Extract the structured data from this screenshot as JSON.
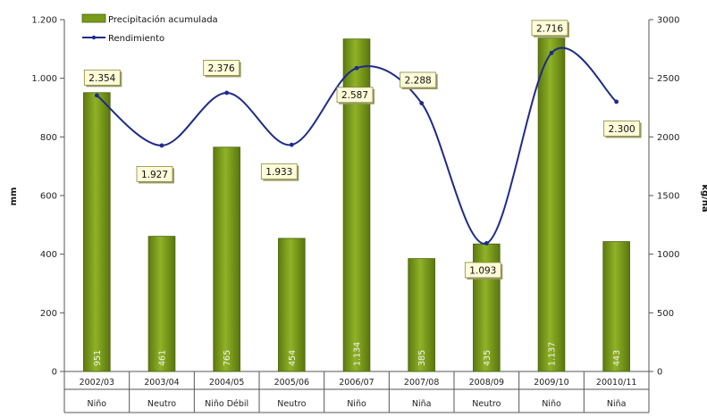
{
  "chart_data": {
    "type": "bar",
    "categories": [
      "2002/03",
      "2003/04",
      "2004/05",
      "2005/06",
      "2006/07",
      "2007/08",
      "2008/09",
      "2009/10",
      "20010/11"
    ],
    "phases": [
      "Niño",
      "Neutro",
      "Niño Débil",
      "Neutro",
      "Niño",
      "Niña",
      "Neutro",
      "Niño",
      "Niña"
    ],
    "series": [
      {
        "name": "Precipitación acumulada",
        "kind": "bar",
        "axis": "left",
        "color": "#7a9a1a",
        "values": [
          951,
          461,
          765,
          454,
          1134,
          385,
          435,
          1137,
          443
        ],
        "labels": [
          "951",
          "461",
          "765",
          "454",
          "1.134",
          "385",
          "435",
          "1.137",
          "443"
        ]
      },
      {
        "name": "Rendimiento",
        "kind": "line",
        "axis": "right",
        "color": "#1f2a8a",
        "values": [
          2354,
          1927,
          2376,
          1933,
          2587,
          2288,
          1093,
          2716,
          2300
        ],
        "labels": [
          "2.354",
          "1.927",
          "2.376",
          "1.933",
          "2.587",
          "2.288",
          "1.093",
          "2.716",
          "2.300"
        ]
      }
    ],
    "ylabel": "mm",
    "y2label": "kg/ha",
    "ylim": [
      0,
      1200
    ],
    "y2lim": [
      0,
      3000
    ],
    "yticks": [
      0,
      200,
      400,
      600,
      800,
      1000,
      1200
    ],
    "yticklabels": [
      "0",
      "200",
      "400",
      "600",
      "800",
      "1.000",
      "1.200"
    ],
    "y2ticks": [
      0,
      500,
      1000,
      1500,
      2000,
      2500,
      3000
    ],
    "legend_position": "top-left",
    "grid": false
  }
}
